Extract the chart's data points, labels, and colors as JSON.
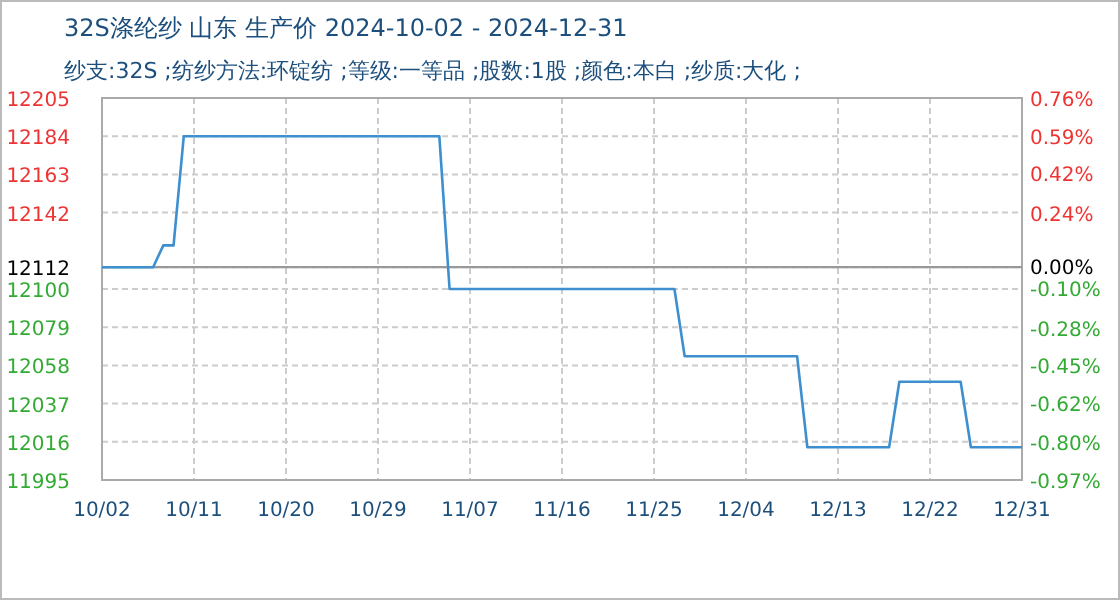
{
  "chart_data": {
    "type": "line",
    "title": "32S涤纶纱 山东 生产价 2024-10-02 - 2024-12-31",
    "subtitle": "纱支:32S ;纺纱方法:环锭纺 ;等级:一等品 ;股数:1股 ;颜色:本白 ;纱质:大化 ;",
    "x": [
      "2024-10-02",
      "2024-10-07",
      "2024-10-08",
      "2024-10-09",
      "2024-10-10",
      "2024-11-04",
      "2024-11-05",
      "2024-11-27",
      "2024-11-28",
      "2024-12-09",
      "2024-12-10",
      "2024-12-18",
      "2024-12-19",
      "2024-12-25",
      "2024-12-26",
      "2024-12-31"
    ],
    "series": [
      {
        "color": "#3d8fd0",
        "values": [
          12112,
          12112,
          12124,
          12124,
          12184,
          12184,
          12100,
          12100,
          12063,
          12063,
          12013,
          12013,
          12049,
          12049,
          12013,
          12013
        ]
      }
    ],
    "xlim": [
      "2024-10-02",
      "2024-12-31"
    ],
    "xticks": [
      {
        "value": "2024-10-02",
        "label": "10/02"
      },
      {
        "value": "2024-10-11",
        "label": "10/11"
      },
      {
        "value": "2024-10-20",
        "label": "10/20"
      },
      {
        "value": "2024-10-29",
        "label": "10/29"
      },
      {
        "value": "2024-11-07",
        "label": "11/07"
      },
      {
        "value": "2024-11-16",
        "label": "11/16"
      },
      {
        "value": "2024-11-25",
        "label": "11/25"
      },
      {
        "value": "2024-12-04",
        "label": "12/04"
      },
      {
        "value": "2024-12-13",
        "label": "12/13"
      },
      {
        "value": "2024-12-22",
        "label": "12/22"
      },
      {
        "value": "2024-12-31",
        "label": "12/31"
      }
    ],
    "ylim": [
      11995,
      12205
    ],
    "yticks": [
      11995,
      12016,
      12037,
      12058,
      12079,
      12100,
      12112,
      12142,
      12163,
      12184,
      12205
    ],
    "y2lim": [
      -0.97,
      0.76
    ],
    "y2ticks": [
      {
        "value": -0.97,
        "label": "-0.97%"
      },
      {
        "value": -0.8,
        "label": "-0.80%"
      },
      {
        "value": -0.62,
        "label": "-0.62%"
      },
      {
        "value": -0.45,
        "label": "-0.45%"
      },
      {
        "value": -0.28,
        "label": "-0.28%"
      },
      {
        "value": -0.1,
        "label": "-0.10%"
      },
      {
        "value": 0,
        "label": "0.00%"
      },
      {
        "value": 0.24,
        "label": "0.24%"
      },
      {
        "value": 0.42,
        "label": "0.42%"
      },
      {
        "value": 0.59,
        "label": "0.59%"
      },
      {
        "value": 0.76,
        "label": "0.76%"
      }
    ],
    "ref_lines": [
      {
        "axis": "y",
        "value": 12112,
        "color": "#999999"
      }
    ],
    "grid": true,
    "line_style": "solid",
    "marker": "none"
  }
}
